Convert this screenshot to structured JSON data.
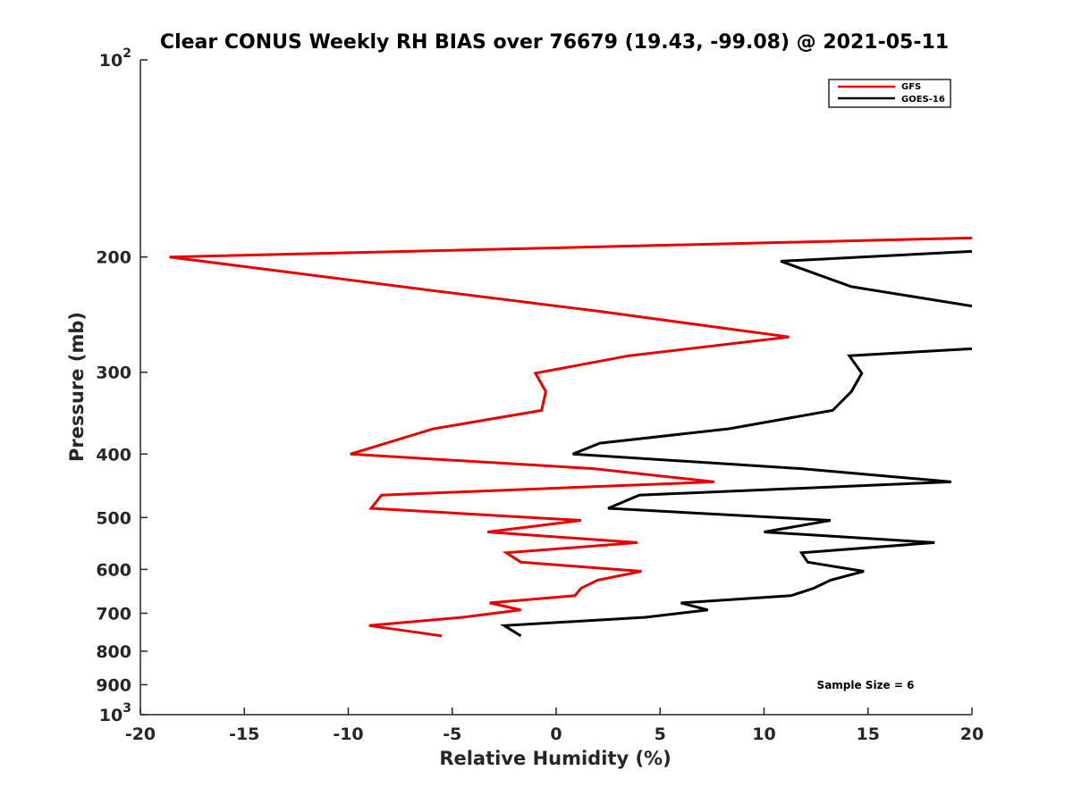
{
  "chart_data": {
    "type": "line",
    "title": "Clear CONUS Weekly RH BIAS over 76679 (19.43, -99.08) @ 2021-05-11",
    "xlabel": "Relative Humidity (%)",
    "ylabel": "Pressure (mb)",
    "xlim": [
      -20,
      20
    ],
    "ylim": [
      100,
      1000
    ],
    "y_scale": "log",
    "y_reversed": true,
    "x_ticks": [
      -20,
      -15,
      -10,
      -5,
      0,
      5,
      10,
      15,
      20
    ],
    "x_tick_labels": [
      "-20",
      "-15",
      "-10",
      "-5",
      "0",
      "5",
      "10",
      "15",
      "20"
    ],
    "y_ticks": [
      100,
      200,
      300,
      400,
      500,
      600,
      700,
      800,
      900,
      1000
    ],
    "y_tick_labels": [
      {
        "base": "10",
        "exp": "2"
      },
      {
        "base": "200"
      },
      {
        "base": "300"
      },
      {
        "base": "400"
      },
      {
        "base": "500"
      },
      {
        "base": "600"
      },
      {
        "base": "700"
      },
      {
        "base": "800"
      },
      {
        "base": "900"
      },
      {
        "base": "10",
        "exp": "3"
      }
    ],
    "grid": false,
    "legend_position": "top-right",
    "annotation": "Sample Size = 6",
    "series": [
      {
        "name": "GFS",
        "color": "#e60000",
        "points": [
          [
            20.1,
            187
          ],
          [
            -18.6,
            200
          ],
          [
            -6,
            225
          ],
          [
            2,
            242
          ],
          [
            11.2,
            265
          ],
          [
            3.5,
            283
          ],
          [
            -1,
            301
          ],
          [
            -0.5,
            321
          ],
          [
            -0.7,
            343
          ],
          [
            -5.9,
            366
          ],
          [
            -9.9,
            400
          ],
          [
            1.8,
            421
          ],
          [
            7.6,
            441
          ],
          [
            -8.4,
            462
          ],
          [
            -8.9,
            484
          ],
          [
            1.2,
            505
          ],
          [
            -3.3,
            526
          ],
          [
            3.9,
            546
          ],
          [
            -2.4,
            566
          ],
          [
            -1.7,
            585
          ],
          [
            4.1,
            604
          ],
          [
            2,
            623
          ],
          [
            1.2,
            641
          ],
          [
            0.9,
            658
          ],
          [
            -3.2,
            675
          ],
          [
            -1.7,
            692
          ],
          [
            -4.5,
            710
          ],
          [
            -9,
            731
          ],
          [
            -5.5,
            758
          ]
        ]
      },
      {
        "name": "GOES-16",
        "color": "#000000",
        "points": [
          [
            20.1,
            196
          ],
          [
            10.8,
            203
          ],
          [
            14.2,
            222
          ],
          [
            20.1,
            238
          ],
          [
            20.1,
            276
          ],
          [
            14.1,
            283
          ],
          [
            14.7,
            301
          ],
          [
            14.2,
            321
          ],
          [
            13.3,
            343
          ],
          [
            8.3,
            366
          ],
          [
            2.1,
            385
          ],
          [
            0.8,
            400
          ],
          [
            11.8,
            421
          ],
          [
            19,
            441
          ],
          [
            4,
            462
          ],
          [
            2.5,
            484
          ],
          [
            13.2,
            505
          ],
          [
            10,
            526
          ],
          [
            18.2,
            546
          ],
          [
            11.8,
            566
          ],
          [
            12.1,
            585
          ],
          [
            14.8,
            604
          ],
          [
            13.2,
            623
          ],
          [
            12.4,
            641
          ],
          [
            11.3,
            658
          ],
          [
            6,
            675
          ],
          [
            7.3,
            692
          ],
          [
            4.3,
            710
          ],
          [
            -2.5,
            731
          ],
          [
            -1.7,
            758
          ]
        ]
      }
    ]
  }
}
